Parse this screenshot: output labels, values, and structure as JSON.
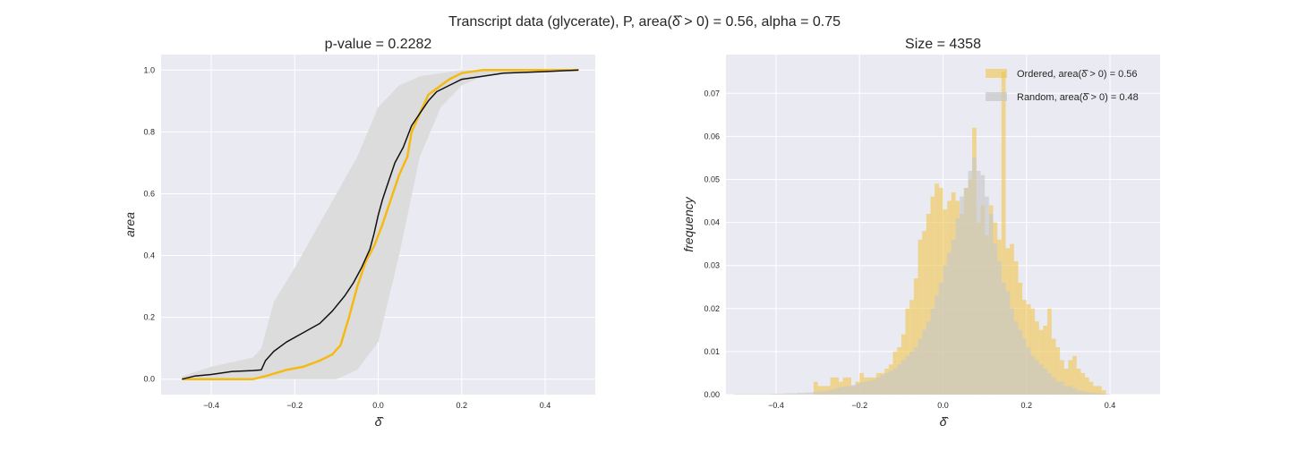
{
  "figure": {
    "suptitle": "Transcript data (glycerate), P, area(δ̂ > 0) = 0.56, alpha = 0.75"
  },
  "colors": {
    "ordered": "#f5b914",
    "random": "#111111",
    "band": "#dcdcdc",
    "hist_ordered": "#f0c44c",
    "hist_random": "#c8c8c8",
    "panel_bg": "#eaeaf2"
  },
  "chart_data": [
    {
      "type": "line",
      "title": "p-value = 0.2282",
      "xlabel": "δ̂",
      "ylabel": "area",
      "xlim": [
        -0.52,
        0.52
      ],
      "ylim": [
        -0.05,
        1.05
      ],
      "xticks": [
        -0.4,
        -0.2,
        0.0,
        0.2,
        0.4
      ],
      "yticks": [
        0.0,
        0.2,
        0.4,
        0.6,
        0.8,
        1.0
      ],
      "xtick_labels": [
        "−0.4",
        "−0.2",
        "0.0",
        "0.2",
        "0.4"
      ],
      "ytick_labels": [
        "0.0",
        "0.2",
        "0.4",
        "0.6",
        "0.8",
        "1.0"
      ],
      "grid": true,
      "band": {
        "x": [
          -0.47,
          -0.4,
          -0.3,
          -0.28,
          -0.25,
          -0.2,
          -0.15,
          -0.1,
          -0.05,
          0.0,
          0.05,
          0.1,
          0.15,
          0.2,
          0.25,
          0.3,
          0.4,
          0.48
        ],
        "lower": [
          0.0,
          0.0,
          0.0,
          0.0,
          0.0,
          0.0,
          0.0,
          0.0,
          0.03,
          0.12,
          0.4,
          0.72,
          0.88,
          0.95,
          0.98,
          0.99,
          1.0,
          1.0
        ],
        "upper": [
          0.01,
          0.04,
          0.07,
          0.1,
          0.25,
          0.36,
          0.48,
          0.6,
          0.72,
          0.88,
          0.95,
          0.98,
          0.99,
          1.0,
          1.0,
          1.0,
          1.0,
          1.0
        ]
      },
      "series": [
        {
          "name": "Ordered",
          "x": [
            -0.47,
            -0.44,
            -0.4,
            -0.35,
            -0.3,
            -0.27,
            -0.22,
            -0.18,
            -0.14,
            -0.11,
            -0.09,
            -0.07,
            -0.05,
            -0.03,
            -0.01,
            0.01,
            0.03,
            0.05,
            0.07,
            0.08,
            0.1,
            0.12,
            0.14,
            0.17,
            0.2,
            0.25,
            0.3,
            0.4,
            0.48
          ],
          "y": [
            0.0,
            0.0,
            0.0,
            0.0,
            0.0,
            0.01,
            0.03,
            0.04,
            0.06,
            0.08,
            0.11,
            0.2,
            0.3,
            0.38,
            0.43,
            0.5,
            0.58,
            0.66,
            0.72,
            0.8,
            0.86,
            0.92,
            0.94,
            0.97,
            0.99,
            1.0,
            1.0,
            1.0,
            1.0
          ]
        },
        {
          "name": "Random",
          "x": [
            -0.47,
            -0.44,
            -0.4,
            -0.35,
            -0.3,
            -0.28,
            -0.27,
            -0.25,
            -0.22,
            -0.18,
            -0.14,
            -0.11,
            -0.08,
            -0.06,
            -0.04,
            -0.02,
            -0.01,
            0.0,
            0.01,
            0.02,
            0.04,
            0.06,
            0.08,
            0.1,
            0.12,
            0.14,
            0.17,
            0.2,
            0.25,
            0.3,
            0.4,
            0.48
          ],
          "y": [
            0.0,
            0.01,
            0.015,
            0.025,
            0.028,
            0.03,
            0.06,
            0.09,
            0.12,
            0.15,
            0.18,
            0.22,
            0.27,
            0.31,
            0.36,
            0.42,
            0.47,
            0.53,
            0.58,
            0.62,
            0.7,
            0.75,
            0.82,
            0.86,
            0.9,
            0.93,
            0.95,
            0.97,
            0.98,
            0.99,
            0.995,
            1.0
          ]
        }
      ]
    },
    {
      "type": "bar",
      "title": "Size = 4358",
      "xlabel": "δ̂",
      "ylabel": "frequency",
      "xlim": [
        -0.52,
        0.52
      ],
      "ylim": [
        0.0,
        0.079
      ],
      "xticks": [
        -0.4,
        -0.2,
        0.0,
        0.2,
        0.4
      ],
      "yticks": [
        0.0,
        0.01,
        0.02,
        0.03,
        0.04,
        0.05,
        0.06,
        0.07
      ],
      "xtick_labels": [
        "−0.4",
        "−0.2",
        "0.0",
        "0.2",
        "0.4"
      ],
      "ytick_labels": [
        "0.00",
        "0.01",
        "0.02",
        "0.03",
        "0.04",
        "0.05",
        "0.06",
        "0.07"
      ],
      "grid": true,
      "legend": "top-right",
      "bin_width": 0.01,
      "series": [
        {
          "name": "Ordered, area(δ̂ > 0) = 0.56",
          "x_start": -0.31,
          "values": [
            0.003,
            0.002,
            0.002,
            0.002,
            0.004,
            0.004,
            0.003,
            0.004,
            0.004,
            0.002,
            0.003,
            0.005,
            0.004,
            0.004,
            0.004,
            0.005,
            0.005,
            0.006,
            0.007,
            0.01,
            0.011,
            0.014,
            0.02,
            0.022,
            0.027,
            0.036,
            0.038,
            0.042,
            0.046,
            0.049,
            0.048,
            0.043,
            0.045,
            0.047,
            0.045,
            0.042,
            0.048,
            0.05,
            0.062,
            0.04,
            0.044,
            0.037,
            0.044,
            0.04,
            0.036,
            0.075,
            0.034,
            0.035,
            0.031,
            0.026,
            0.022,
            0.021,
            0.02,
            0.017,
            0.015,
            0.016,
            0.02,
            0.013,
            0.011,
            0.008,
            0.006,
            0.008,
            0.009,
            0.006,
            0.005,
            0.004,
            0.003,
            0.002,
            0.002,
            0.001
          ]
        },
        {
          "name": "Random, area(δ̂ > 0) = 0.48",
          "x_start": -0.5,
          "values": [
            0.0001,
            0.0001,
            0.0001,
            0.0001,
            0.0001,
            0.0001,
            0.0001,
            0.0001,
            0.0001,
            0.0002,
            0.0002,
            0.0002,
            0.0003,
            0.0003,
            0.0003,
            0.0004,
            0.0004,
            0.0005,
            0.0005,
            0.0006,
            0.0007,
            0.0008,
            0.001,
            0.0012,
            0.0015,
            0.0017,
            0.0019,
            0.002,
            0.0022,
            0.0025,
            0.0028,
            0.003,
            0.0032,
            0.0035,
            0.004,
            0.0045,
            0.005,
            0.0055,
            0.006,
            0.007,
            0.008,
            0.009,
            0.01,
            0.011,
            0.013,
            0.015,
            0.017,
            0.02,
            0.023,
            0.026,
            0.03,
            0.033,
            0.036,
            0.041,
            0.046,
            0.048,
            0.052,
            0.055,
            0.052,
            0.051,
            0.046,
            0.042,
            0.035,
            0.031,
            0.026,
            0.024,
            0.02,
            0.017,
            0.015,
            0.013,
            0.011,
            0.009,
            0.008,
            0.007,
            0.006,
            0.005,
            0.004,
            0.003,
            0.003,
            0.002,
            0.002,
            0.0015,
            0.001,
            0.0008,
            0.0006,
            0.0005,
            0.0004,
            0.0003,
            0.0002,
            0.0001
          ]
        }
      ]
    }
  ]
}
